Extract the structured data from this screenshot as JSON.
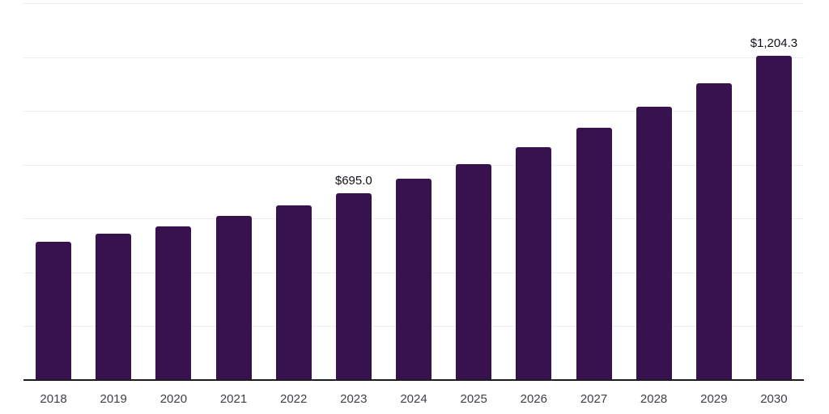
{
  "chart": {
    "background": "#FFFFFF",
    "bar_color": "#38114F",
    "grid_color": "#EDEDF0",
    "axis_color": "#1C1C1C",
    "tick_label_color": "#3F3F46",
    "data_label_color": "#111118"
  },
  "chart_data": {
    "type": "bar",
    "title": "",
    "xlabel": "",
    "ylabel": "",
    "categories": [
      "2018",
      "2019",
      "2020",
      "2021",
      "2022",
      "2023",
      "2024",
      "2025",
      "2026",
      "2027",
      "2028",
      "2029",
      "2030"
    ],
    "values": [
      513,
      543,
      571,
      609,
      649,
      695.0,
      747,
      803,
      865,
      937,
      1015,
      1103,
      1204.3
    ],
    "data_labels": [
      "",
      "",
      "",
      "",
      "",
      "$695.0",
      "",
      "",
      "",
      "",
      "",
      "",
      "$1,204.3"
    ],
    "ylim": [
      0,
      1400
    ],
    "y_gridline_step": 200,
    "grid": true,
    "legend": false,
    "y_axis_tick_labels_visible": false
  }
}
